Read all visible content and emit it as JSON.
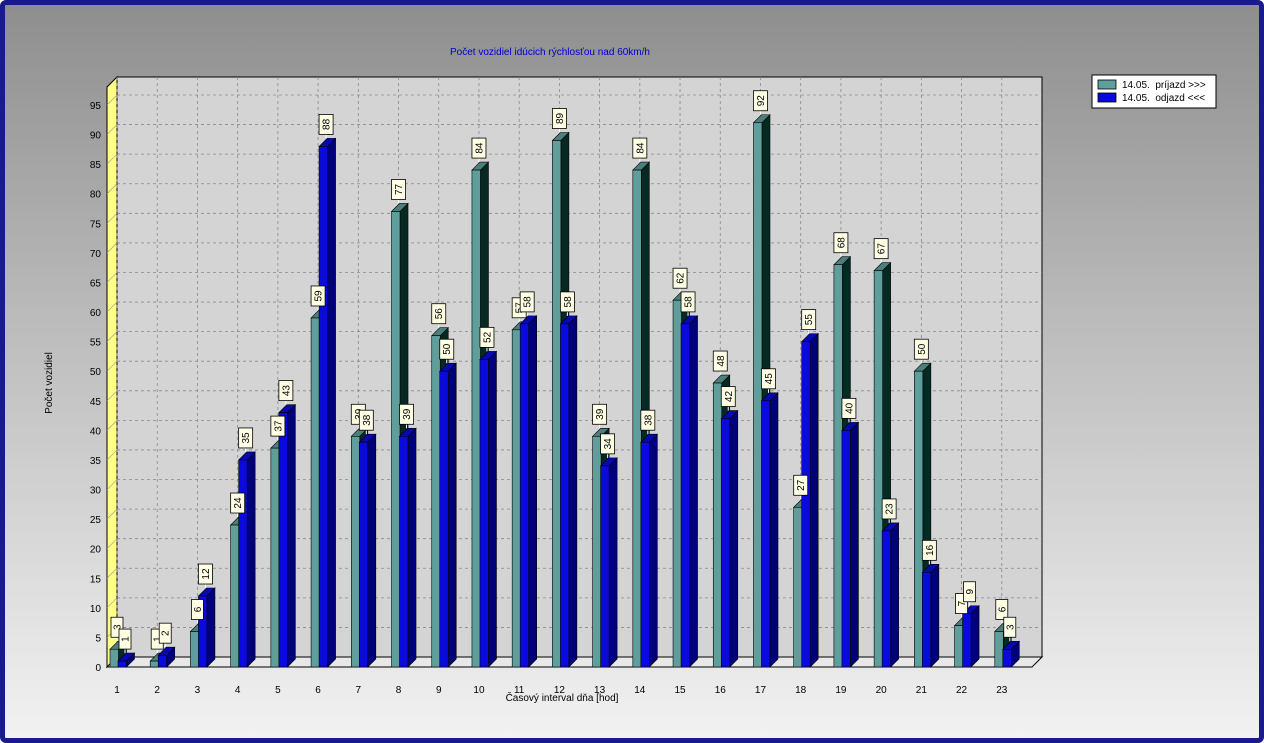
{
  "chart_data": {
    "type": "bar",
    "title": "Počet vozidiel idúcich rýchlosťou nad 60km/h",
    "xlabel": "Časový interval dňa [hod]",
    "ylabel": "Počet vozidiel",
    "ylim": [
      0,
      95
    ],
    "yticks": [
      0,
      5,
      10,
      15,
      20,
      25,
      30,
      35,
      40,
      45,
      50,
      55,
      60,
      65,
      70,
      75,
      80,
      85,
      90,
      95
    ],
    "grid": true,
    "legend_position": "top-right",
    "categories": [
      "1",
      "2",
      "3",
      "4",
      "5",
      "6",
      "7",
      "8",
      "9",
      "10",
      "11",
      "12",
      "13",
      "14",
      "15",
      "16",
      "17",
      "18",
      "19",
      "20",
      "21",
      "22",
      "23"
    ],
    "series": [
      {
        "name": "14.05.  príjazd >>>",
        "color": "#5f9e9a",
        "values": [
          3,
          1,
          6,
          24,
          37,
          59,
          39,
          77,
          56,
          84,
          57,
          89,
          39,
          84,
          62,
          48,
          92,
          27,
          68,
          67,
          50,
          7,
          6
        ]
      },
      {
        "name": "14.05.  odjazd <<<",
        "color": "#0a0adc",
        "values": [
          1,
          2,
          12,
          35,
          43,
          88,
          38,
          39,
          50,
          52,
          58,
          58,
          34,
          38,
          58,
          42,
          45,
          55,
          40,
          23,
          16,
          9,
          3
        ]
      }
    ]
  }
}
